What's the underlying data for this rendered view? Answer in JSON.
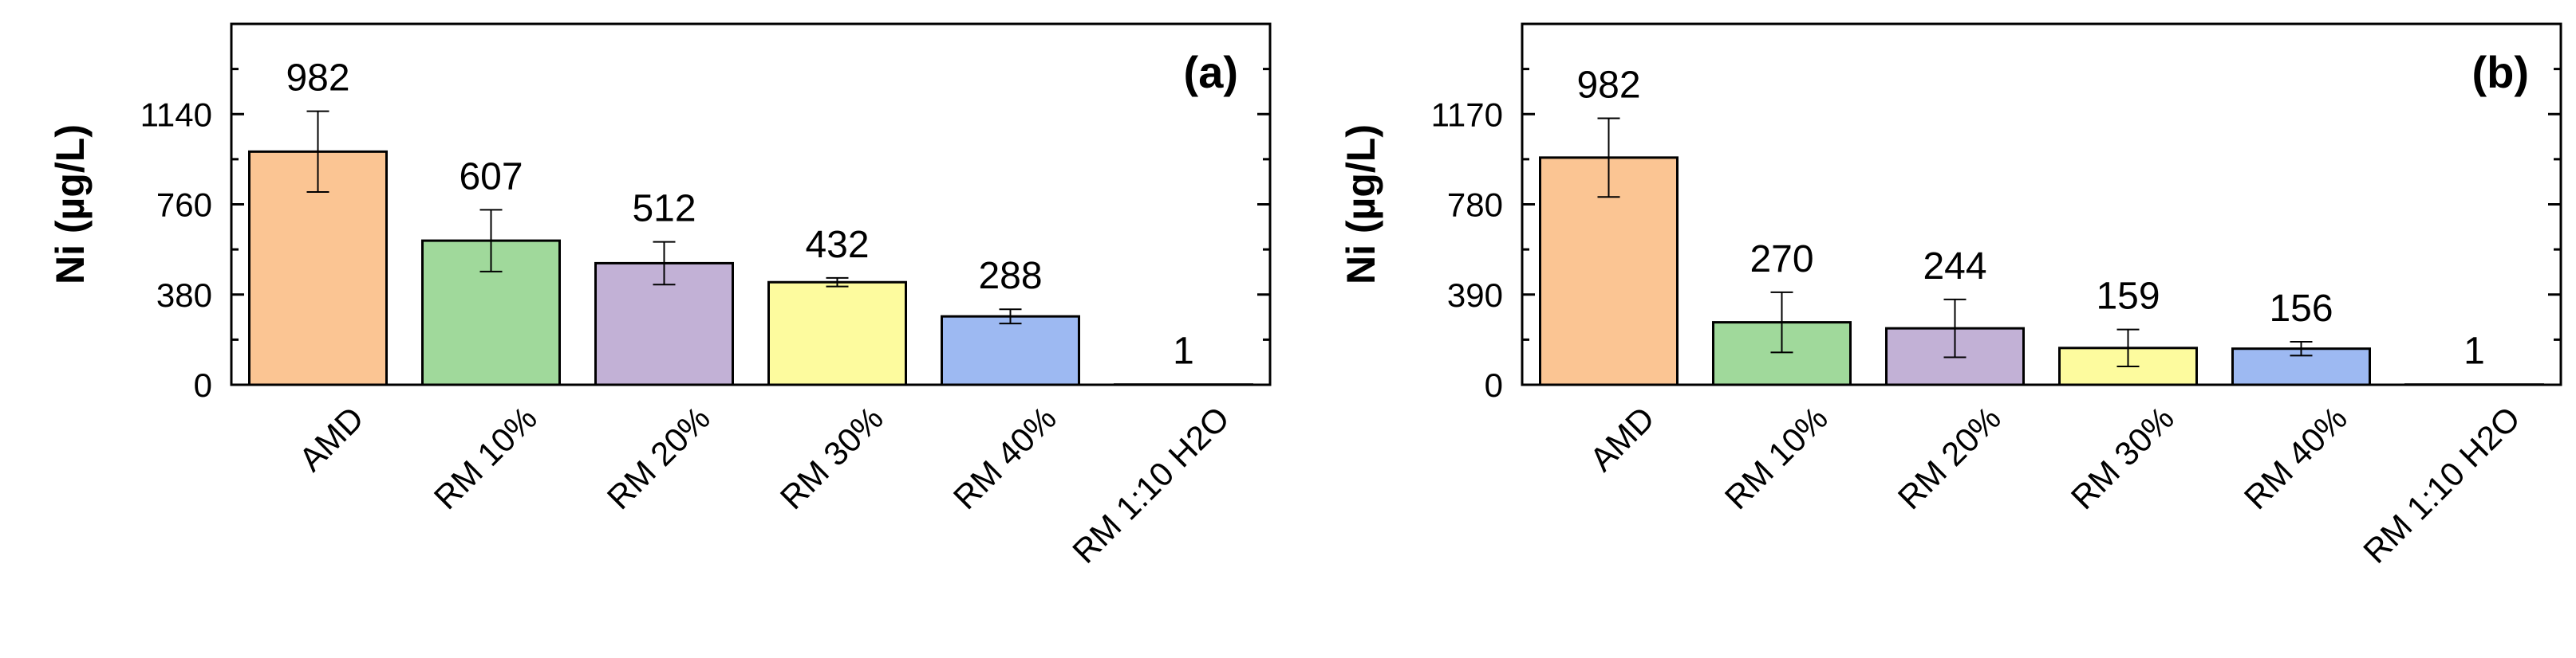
{
  "chart_data": [
    {
      "type": "bar",
      "panel_label": "(a)",
      "ylabel": "Ni (µg/L)",
      "xlabel": "",
      "categories": [
        "AMD",
        "RM 10%",
        "RM 20%",
        "RM 30%",
        "RM 40%",
        "RM 1:10 H2O"
      ],
      "values": [
        982,
        607,
        512,
        432,
        288,
        1
      ],
      "value_labels": [
        "982",
        "607",
        "512",
        "432",
        "288",
        "1"
      ],
      "errors": [
        170,
        130,
        90,
        18,
        30,
        0
      ],
      "colors": [
        "#FBC593",
        "#A0D99B",
        "#C2B1D6",
        "#FDFB9E",
        "#9DB9F2",
        "#FFFFFF"
      ],
      "ylim": [
        0,
        1520
      ],
      "yticks": [
        0,
        380,
        760,
        1140
      ],
      "ytick_labels": [
        "0",
        "380",
        "760",
        "1140"
      ],
      "grid": false
    },
    {
      "type": "bar",
      "panel_label": "(b)",
      "ylabel": "Ni (µg/L)",
      "xlabel": "",
      "categories": [
        "AMD",
        "RM 10%",
        "RM 20%",
        "RM 30%",
        "RM 40%",
        "RM 1:10 H2O"
      ],
      "values": [
        982,
        270,
        244,
        159,
        156,
        1
      ],
      "value_labels": [
        "982",
        "270",
        "244",
        "159",
        "156",
        "1"
      ],
      "errors": [
        170,
        130,
        125,
        80,
        30,
        0
      ],
      "colors": [
        "#FBC593",
        "#A0D99B",
        "#C2B1D6",
        "#FDFB9E",
        "#9DB9F2",
        "#FFFFFF"
      ],
      "ylim": [
        0,
        1560
      ],
      "yticks": [
        0,
        390,
        780,
        1170
      ],
      "ytick_labels": [
        "0",
        "390",
        "780",
        "1170"
      ],
      "grid": false
    }
  ]
}
